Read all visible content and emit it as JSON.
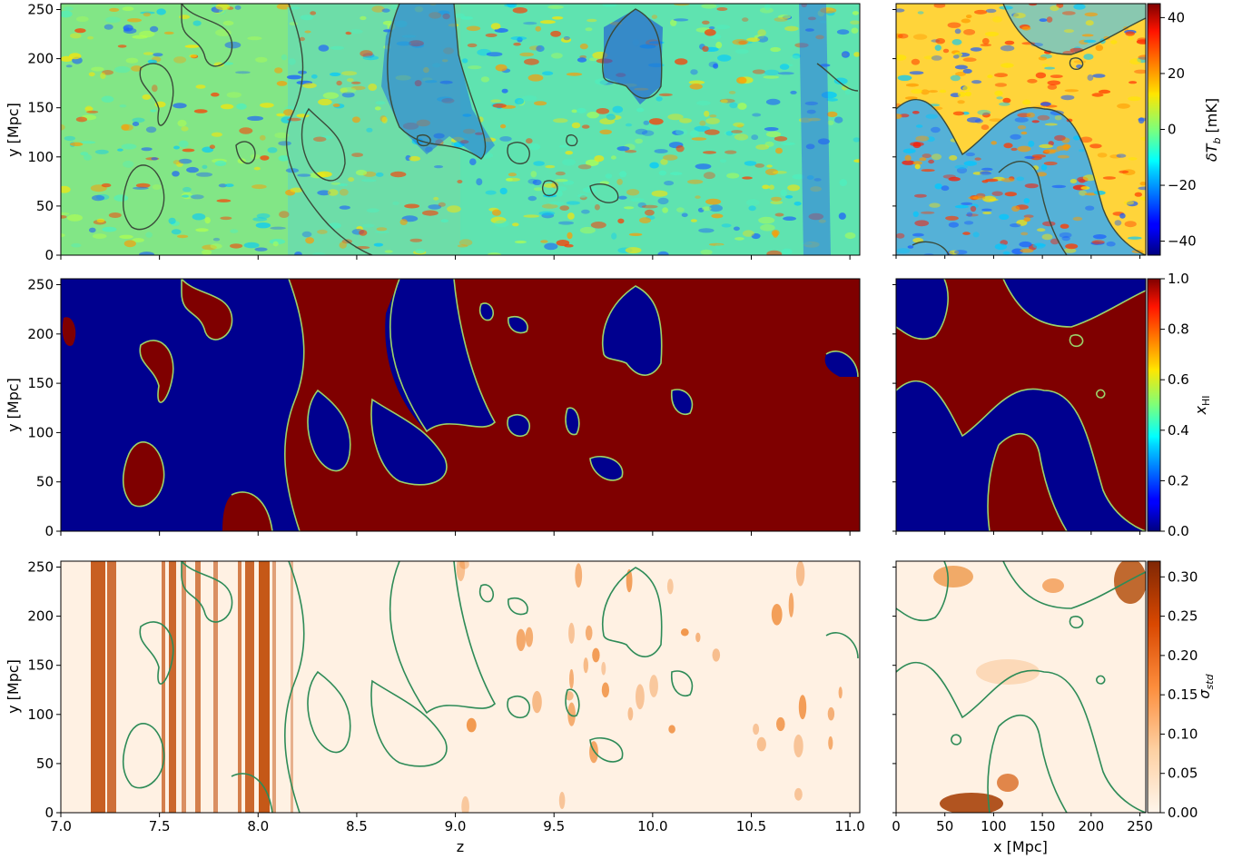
{
  "chart_data": [
    {
      "type": "heatmap",
      "panel": "top-left",
      "ylabel": "y [Mpc]",
      "xlabel": "",
      "xlim": [
        7.0,
        11.05
      ],
      "ylim": [
        0,
        256
      ],
      "yticks": [
        0,
        50,
        100,
        150,
        200,
        250
      ],
      "xticks": [
        7.0,
        7.5,
        8.0,
        8.5,
        9.0,
        9.5,
        10.0,
        10.5,
        11.0
      ],
      "colormap": "jet",
      "contour_color": "#3a4a3a"
    },
    {
      "type": "heatmap",
      "panel": "top-right",
      "xlim": [
        0,
        256
      ],
      "ylim": [
        0,
        256
      ],
      "colormap": "jet",
      "colorbar": {
        "label": "δT_b [mK]",
        "range": [
          -45,
          45
        ],
        "ticks": [
          -40,
          -20,
          0,
          20,
          40
        ]
      }
    },
    {
      "type": "heatmap",
      "panel": "middle-left",
      "ylabel": "y [Mpc]",
      "xlim": [
        7.0,
        11.05
      ],
      "ylim": [
        0,
        256
      ],
      "yticks": [
        0,
        50,
        100,
        150,
        200,
        250
      ],
      "colormap": "jet",
      "contour_color": "#9bd36a"
    },
    {
      "type": "heatmap",
      "panel": "middle-right",
      "xlim": [
        0,
        256
      ],
      "ylim": [
        0,
        256
      ],
      "colormap": "jet",
      "colorbar": {
        "label": "x_HI",
        "range": [
          0,
          1
        ],
        "ticks": [
          0.0,
          0.2,
          0.4,
          0.6,
          0.8,
          1.0
        ]
      }
    },
    {
      "type": "heatmap",
      "panel": "bottom-left",
      "ylabel": "y [Mpc]",
      "xlabel": "z",
      "xlim": [
        7.0,
        11.05
      ],
      "ylim": [
        0,
        256
      ],
      "yticks": [
        0,
        50,
        100,
        150,
        200,
        250
      ],
      "xticks": [
        7.0,
        7.5,
        8.0,
        8.5,
        9.0,
        9.5,
        10.0,
        10.5,
        11.0
      ],
      "colormap": "oranges",
      "contour_color": "#2e8b57"
    },
    {
      "type": "heatmap",
      "panel": "bottom-right",
      "xlabel": "x [Mpc]",
      "xlim": [
        0,
        256
      ],
      "ylim": [
        0,
        256
      ],
      "xticks": [
        0,
        50,
        100,
        150,
        200,
        250
      ],
      "colormap": "oranges",
      "colorbar": {
        "label": "σ_std",
        "range": [
          0,
          0.32
        ],
        "ticks": [
          0.0,
          0.05,
          0.1,
          0.15,
          0.2,
          0.25,
          0.3
        ]
      }
    }
  ],
  "labels": {
    "ylabel": "y [Mpc]",
    "z_label": "z",
    "x_label": "x [Mpc]",
    "cb_dtb_main": "δT",
    "cb_dtb_sub": "b",
    "cb_dtb_unit": " [mK]",
    "cb_xhi_main": "x",
    "cb_xhi_sub": "HI",
    "cb_sigma_main": "σ",
    "cb_sigma_sub": "std"
  }
}
